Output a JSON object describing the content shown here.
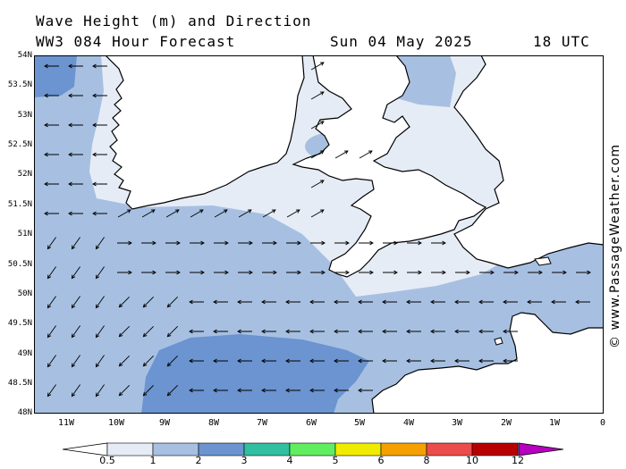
{
  "title": {
    "line1": "Wave Height (m) and Direction",
    "model": "WW3 084 Hour Forecast",
    "date": "Sun 04 May 2025",
    "time": "18 UTC"
  },
  "credit": "© www.PassageWeather.com",
  "lat_labels": [
    "54N",
    "53.5N",
    "53N",
    "52.5N",
    "52N",
    "51.5N",
    "51N",
    "50.5N",
    "50N",
    "49.5N",
    "49N",
    "48.5N",
    "48N"
  ],
  "lon_labels": [
    "11W",
    "10W",
    "9W",
    "8W",
    "7W",
    "6W",
    "5W",
    "4W",
    "3W",
    "2W",
    "1W",
    "0"
  ],
  "legend": {
    "labels": [
      "0.5",
      "1",
      "2",
      "3",
      "4",
      "5",
      "6",
      "8",
      "10",
      "12"
    ],
    "colors": [
      "#e6ecf6",
      "#a7c0e2",
      "#6b94d0",
      "#30bfa0",
      "#60ee60",
      "#f0ec00",
      "#f5a000",
      "#ec4c4c",
      "#b80000",
      "#b800c0"
    ],
    "arrow_color": "#ffffff"
  },
  "map_colors": {
    "land": "#ffffff",
    "coast": "#000000",
    "sea_low": "#e6ecf6",
    "sea_mid": "#a7c0e2",
    "sea_high": "#6b94d0"
  }
}
